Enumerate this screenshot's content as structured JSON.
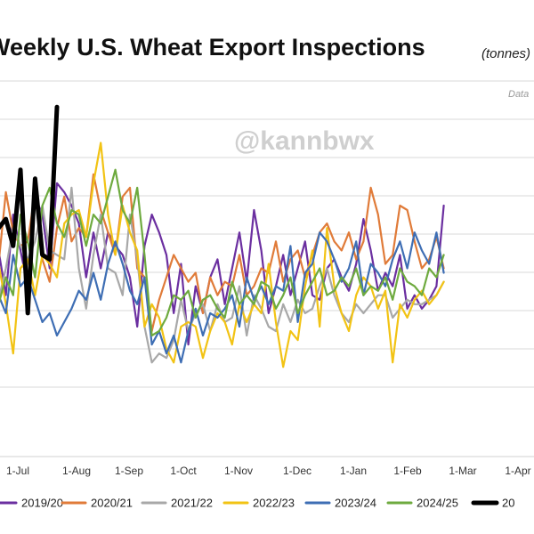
{
  "chart_data": {
    "type": "line",
    "title": "Weekly U.S. Wheat Export Inspections",
    "title_unit": "(tonnes)",
    "note": "Data",
    "watermark": "@kannbwx",
    "x_tick_labels": [
      "1-Jul",
      "1-Aug",
      "1-Sep",
      "1-Oct",
      "1-Nov",
      "1-Dec",
      "1-Jan",
      "1-Feb",
      "1-Mar",
      "1-Apr"
    ],
    "grid": "horizontal",
    "legend_position": "bottom",
    "series": [
      {
        "name": "2019/20",
        "color": "#6b2fa0",
        "values": [
          3.8,
          6.2,
          4.6,
          3.6,
          5.4,
          4.6,
          3.8,
          5.8,
          5.4,
          4.2,
          6.1,
          5.9,
          5.6,
          5.2,
          4.0,
          5.0,
          4.2,
          5.0,
          4.7,
          4.5,
          4.0,
          2.9,
          4.7,
          5.4,
          5.0,
          4.5,
          3.2,
          4.3,
          2.5,
          3.8,
          3.2,
          4.0,
          4.4,
          3.4,
          4.2,
          5.0,
          3.9,
          5.5,
          4.6,
          3.2,
          3.8,
          4.5,
          3.6,
          4.2,
          4.8,
          3.6,
          3.5,
          4.2,
          4.4,
          4.0,
          3.7,
          4.3,
          5.3,
          4.6,
          3.7,
          4.1,
          3.8,
          4.5,
          3.3,
          3.6,
          3.3,
          3.5,
          3.8,
          5.6
        ]
      },
      {
        "name": "2020/21",
        "color": "#e07b39",
        "values": [
          4.5,
          4.9,
          4.3,
          5.9,
          5.0,
          4.7,
          4.8,
          5.9,
          4.4,
          3.9,
          5.1,
          5.8,
          4.8,
          5.1,
          4.9,
          6.3,
          5.5,
          5.0,
          4.5,
          5.8,
          6.0,
          4.2,
          4.0,
          2.8,
          3.5,
          4.0,
          4.5,
          4.2,
          3.9,
          4.1,
          3.2,
          4.0,
          3.6,
          3.9,
          3.8,
          4.5,
          3.6,
          3.8,
          4.2,
          4.1,
          4.8,
          3.9,
          4.4,
          4.6,
          4.0,
          4.5,
          5.0,
          5.2,
          4.8,
          4.6,
          5.0,
          4.4,
          4.8,
          6.0,
          5.4,
          4.3,
          4.5,
          5.6,
          5.5,
          4.8,
          4.2,
          4.4,
          4.9,
          4.2
        ]
      },
      {
        "name": "2021/22",
        "color": "#a8a8a8",
        "values": [
          3.5,
          4.3,
          3.5,
          4.2,
          5.1,
          4.7,
          4.4,
          4.8,
          5.6,
          4.6,
          4.5,
          4.4,
          6.0,
          4.2,
          3.3,
          4.5,
          5.4,
          4.2,
          4.1,
          3.6,
          5.4,
          4.4,
          2.9,
          2.1,
          2.3,
          2.2,
          2.6,
          3.5,
          2.8,
          3.2,
          3.4,
          2.8,
          3.4,
          3.0,
          3.1,
          3.8,
          2.7,
          3.6,
          3.3,
          2.9,
          2.8,
          3.4,
          3.0,
          3.5,
          3.2,
          3.3,
          3.8,
          4.2,
          3.6,
          3.2,
          3.0,
          3.4,
          3.2,
          3.4,
          3.6,
          3.6,
          3.1,
          3.3,
          3.5,
          3.4,
          3.4,
          3.5,
          3.6,
          3.9
        ]
      },
      {
        "name": "2022/23",
        "color": "#f2c314",
        "values": [
          3.6,
          3.3,
          4.3,
          3.4,
          2.3,
          4.2,
          4.4,
          3.6,
          4.5,
          4.3,
          4.0,
          5.2,
          5.4,
          5.5,
          4.9,
          6.1,
          7.0,
          5.4,
          4.5,
          5.6,
          5.0,
          4.6,
          2.9,
          3.4,
          3.1,
          2.4,
          2.1,
          2.9,
          3.0,
          2.9,
          2.2,
          2.8,
          3.2,
          3.0,
          2.5,
          3.4,
          3.0,
          3.4,
          3.2,
          4.3,
          3.0,
          2.0,
          2.8,
          2.6,
          3.8,
          4.6,
          2.9,
          5.1,
          3.8,
          3.2,
          2.8,
          3.6,
          4.0,
          3.8,
          3.3,
          3.7,
          2.1,
          3.4,
          3.1,
          3.5,
          3.7,
          3.4,
          3.6,
          3.9
        ]
      },
      {
        "name": "2023/24",
        "color": "#3e6eb4",
        "values": [
          3.4,
          4.4,
          3.6,
          3.2,
          4.5,
          3.8,
          4.0,
          3.5,
          3.0,
          3.2,
          2.7,
          3.0,
          3.3,
          3.7,
          3.5,
          4.1,
          3.5,
          4.3,
          4.8,
          4.3,
          3.7,
          3.4,
          4.0,
          2.5,
          2.8,
          2.3,
          2.7,
          2.1,
          2.8,
          3.3,
          2.7,
          3.2,
          3.1,
          3.3,
          3.6,
          2.9,
          4.0,
          3.5,
          3.8,
          3.4,
          3.8,
          3.7,
          4.7,
          3.0,
          4.1,
          4.3,
          5.0,
          4.8,
          4.4,
          3.9,
          4.2,
          4.8,
          3.6,
          4.3,
          4.1,
          3.8,
          4.4,
          4.8,
          4.2,
          5.0,
          4.6,
          4.3,
          5.0,
          4.1
        ]
      },
      {
        "name": "2024/25",
        "color": "#6eaa3f",
        "values": [
          3.6,
          3.8,
          3.4,
          4.0,
          3.6,
          5.4,
          4.8,
          4.0,
          5.6,
          6.0,
          5.2,
          4.9,
          5.5,
          5.4,
          4.7,
          5.4,
          5.2,
          5.8,
          6.4,
          5.5,
          5.2,
          6.0,
          4.5,
          2.7,
          2.8,
          3.1,
          3.6,
          3.5,
          3.7,
          3.1,
          3.5,
          3.6,
          3.3,
          3.1,
          3.9,
          3.4,
          3.6,
          3.4,
          3.9,
          3.8,
          3.3,
          3.6,
          4.0,
          3.2,
          3.6,
          3.9,
          4.2,
          3.6,
          3.7,
          4.0,
          3.8,
          4.2,
          3.6,
          3.8,
          3.7,
          4.0,
          3.5,
          4.2,
          3.9,
          3.8,
          3.6,
          4.2,
          4.0,
          4.5
        ]
      },
      {
        "name": "20",
        "color": "#000000",
        "values": [
          3.3,
          4.8,
          5.1,
          5.3,
          4.7,
          6.4,
          3.2,
          6.2,
          4.5,
          4.4,
          7.8
        ]
      }
    ]
  }
}
